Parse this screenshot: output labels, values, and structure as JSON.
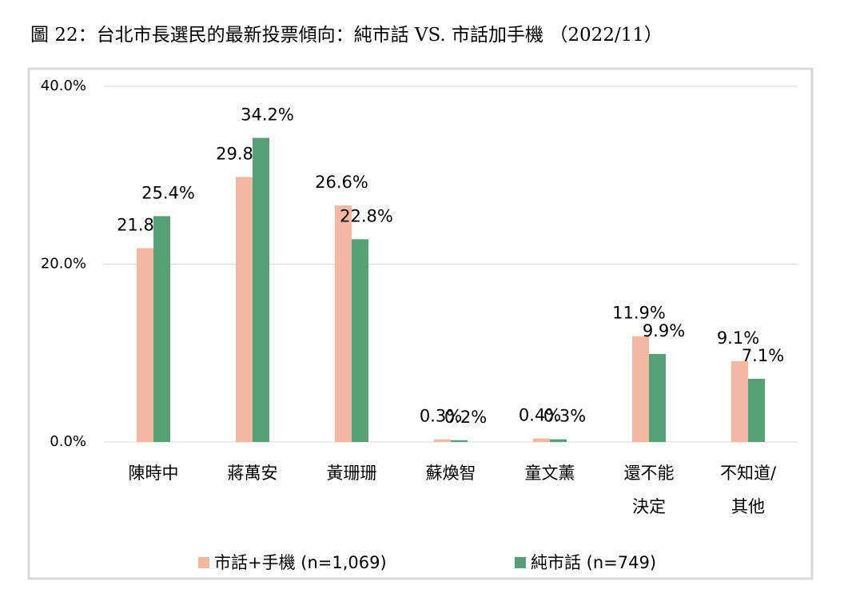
{
  "chart_data": {
    "type": "bar",
    "title": "圖 22：台北市長選民的最新投票傾向：純市話 VS. 市話加手機 （2022/11）",
    "categories": [
      "陳時中",
      "蔣萬安",
      "黃珊珊",
      "蘇煥智",
      "童文薰",
      "還不能\n決定",
      "不知道/\n其他"
    ],
    "series": [
      {
        "name": "市話+手機 (n=1,069)",
        "color": "#f2b8a2",
        "values": [
          21.8,
          29.8,
          26.6,
          0.3,
          0.4,
          11.9,
          9.1
        ],
        "value_labels": [
          "21.8%",
          "29.8%",
          "26.6%",
          "0.3%",
          "0.4%",
          "11.9%",
          "9.1%"
        ]
      },
      {
        "name": "純市話 (n=749)",
        "color": "#55a075",
        "values": [
          25.4,
          34.2,
          22.8,
          0.2,
          0.3,
          9.9,
          7.1
        ],
        "value_labels": [
          "25.4%",
          "34.2%",
          "22.8%",
          "0.2%",
          "0.3%",
          "9.9%",
          "7.1%"
        ]
      }
    ],
    "ylim": [
      0,
      40
    ],
    "yticks": [
      {
        "value": 0,
        "label": "0.0%"
      },
      {
        "value": 20,
        "label": "20.0%"
      },
      {
        "value": 40,
        "label": "40.0%"
      }
    ],
    "grid": true
  }
}
